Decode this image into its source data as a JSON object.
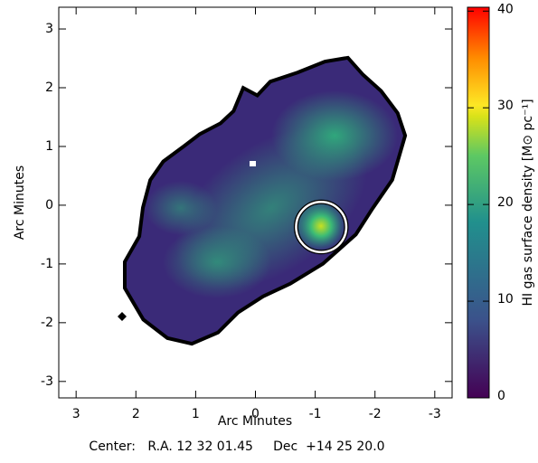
{
  "chart_data": {
    "type": "image",
    "xlabel": "Arc Minutes",
    "ylabel": "Arc Minutes",
    "footer": "Center:   R.A. 12 32 01.45     Dec  +14 25 20.0",
    "xlim": [
      3.29,
      -3.29
    ],
    "ylim": [
      -3.28,
      3.37
    ],
    "xticks": [
      3,
      2,
      1,
      0,
      -1,
      -2,
      -3
    ],
    "yticks": [
      -3,
      -2,
      -1,
      0,
      1,
      2,
      3
    ],
    "marker": {
      "x": -1.1,
      "y": -0.37,
      "radius": 0.42,
      "color": "#ffffff"
    },
    "colorbar": {
      "label": "HI gas surface density [M⊙ pc⁻¹]",
      "lim": [
        0,
        40.4
      ],
      "ticks": [
        0,
        10,
        20,
        30,
        40
      ],
      "colors": [
        "#440154",
        "#3b528b",
        "#21908d",
        "#5dc863",
        "#d8e219",
        "#fde725",
        "#ff8c00",
        "#ff0000"
      ]
    }
  }
}
